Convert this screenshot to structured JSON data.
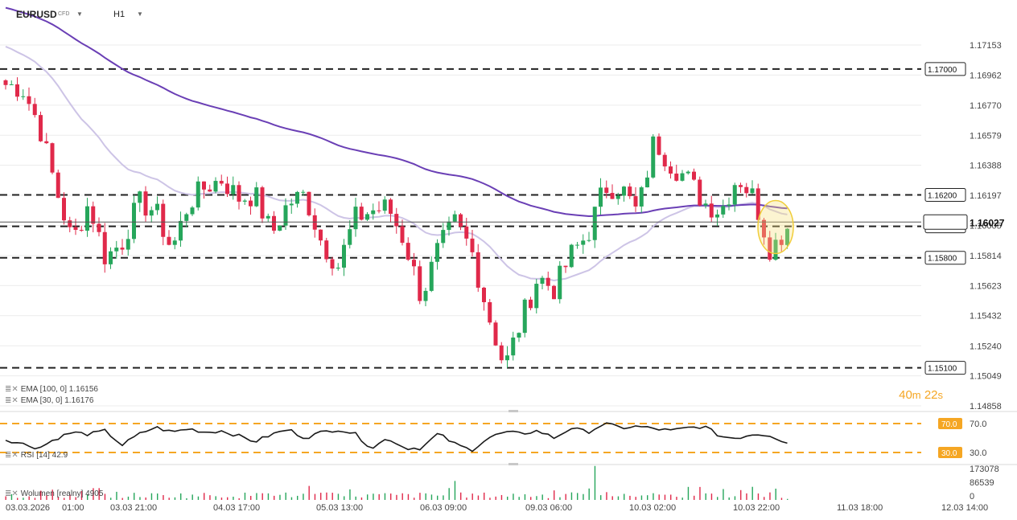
{
  "header": {
    "symbol": "EURUSD",
    "instrument_type": "CFD",
    "timeframe": "H1"
  },
  "indicators": {
    "ema100": "EMA  [100,  0]  1.16156",
    "ema30": "EMA  [30,  0]  1.16176",
    "rsi": "RSI  [14]  42.9",
    "volume": "Wolumen  [realny]  4905"
  },
  "timer": {
    "minutes": "40",
    "m": "m",
    "seconds": "22",
    "s": "s"
  },
  "colors": {
    "up": "#26a65b",
    "down": "#e0294a",
    "ema100": "#6a3fb5",
    "ema30": "#cdc4e6",
    "level_line": "#222222",
    "rsi_line": "#1a1a1a",
    "rsi_level": "#f5a623",
    "highlight": "#f5e07a",
    "current_price_line": "#555555"
  },
  "chart_data": {
    "type": "candlestick",
    "symbol": "EURUSD",
    "timeframe": "H1",
    "y_ticks": [
      "1.17153",
      "1.16962",
      "1.16770",
      "1.16579",
      "1.16388",
      "1.16197",
      "1.16005",
      "1.15814",
      "1.15623",
      "1.15432",
      "1.15240",
      "1.15049",
      "1.14858"
    ],
    "ylim": [
      1.14858,
      1.17153
    ],
    "x_tick_labels": [
      "03.03.2026",
      "01:00",
      "03.03  21:00",
      "04.03  17:00",
      "05.03  13:00",
      "06.03  09:00",
      "09.03  06:00",
      "10.03  02:00",
      "10.03  22:00",
      "11.03  18:00",
      "12.03  14:00"
    ],
    "levels": [
      1.17,
      1.162,
      1.16,
      1.158,
      1.151
    ],
    "level_labels": [
      "1.17000",
      "1.16200",
      "1.16000",
      "1.15800",
      "1.15100"
    ],
    "current_price": 1.16027,
    "current_price_label": "1.16027",
    "ema_last": {
      "ema100": 1.16156,
      "ema30": 1.16176
    },
    "anchors": [
      [
        1.169,
        1.1695
      ],
      [
        1.1688,
        1.1678
      ],
      [
        1.1665,
        1.164
      ],
      [
        1.1625,
        1.16
      ],
      [
        1.159,
        1.1615
      ],
      [
        1.1615,
        1.1605
      ],
      [
        1.158,
        1.1565
      ],
      [
        1.159,
        1.161
      ],
      [
        1.1615,
        1.1618
      ],
      [
        1.161,
        1.1595
      ],
      [
        1.1585,
        1.161
      ],
      [
        1.1615,
        1.163
      ],
      [
        1.1625,
        1.1635
      ],
      [
        1.163,
        1.162
      ],
      [
        1.1618,
        1.1625
      ],
      [
        1.162,
        1.1598
      ],
      [
        1.1595,
        1.161
      ],
      [
        1.1615,
        1.1625
      ],
      [
        1.162,
        1.1595
      ],
      [
        1.159,
        1.158
      ],
      [
        1.1575,
        1.16
      ],
      [
        1.1605,
        1.1608
      ],
      [
        1.161,
        1.1617
      ],
      [
        1.1612,
        1.1598
      ],
      [
        1.159,
        1.157
      ],
      [
        1.1555,
        1.1565
      ],
      [
        1.1585,
        1.1605
      ],
      [
        1.1602,
        1.1595
      ],
      [
        1.1585,
        1.1562
      ],
      [
        1.1545,
        1.152
      ],
      [
        1.151,
        1.1525
      ],
      [
        1.154,
        1.1565
      ],
      [
        1.1568,
        1.1555
      ],
      [
        1.156,
        1.1575
      ],
      [
        1.1582,
        1.1575
      ],
      [
        1.1595,
        1.1612
      ],
      [
        1.1625,
        1.1618
      ],
      [
        1.1625,
        1.1615
      ],
      [
        1.1608,
        1.163
      ],
      [
        1.1655,
        1.1645
      ],
      [
        1.164,
        1.165
      ],
      [
        1.163,
        1.162
      ],
      [
        1.1615,
        1.1605
      ],
      [
        1.161,
        1.1625
      ],
      [
        1.1632,
        1.162
      ],
      [
        1.1618,
        1.161
      ],
      [
        1.1585,
        1.159
      ],
      [
        1.16,
        1.1602
      ]
    ],
    "rsi": {
      "period": 14,
      "last": 42.9,
      "levels": [
        70,
        30
      ],
      "axis_labels": [
        "70.0",
        "30.0"
      ],
      "level_labels": [
        "70.0",
        "30.0"
      ],
      "anchors": [
        48,
        42,
        36,
        49,
        58,
        55,
        60,
        40,
        55,
        65,
        58,
        63,
        58,
        60,
        53,
        45,
        55,
        62,
        50,
        58,
        62,
        56,
        36,
        50,
        36,
        36,
        56,
        42,
        33,
        50,
        58,
        56,
        60,
        50,
        64,
        58,
        70,
        64,
        66,
        63,
        60,
        64,
        66,
        52,
        50,
        56,
        54,
        42
      ]
    },
    "volume": {
      "label": "Wolumen [realny]",
      "last": 4905,
      "axis_labels": [
        "173078",
        "86539",
        "0"
      ],
      "max": 173078
    }
  }
}
